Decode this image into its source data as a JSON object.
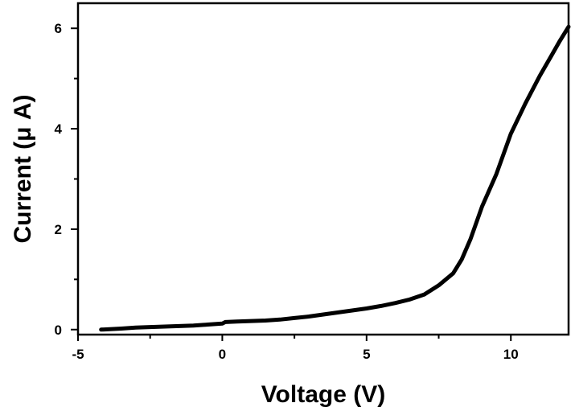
{
  "chart_data": {
    "type": "line",
    "title": "",
    "xlabel": "Voltage (V)",
    "ylabel": "Current (μ A)",
    "xlim": [
      -5,
      12
    ],
    "ylim": [
      -0.1,
      6.5
    ],
    "xticks": [
      -5,
      0,
      5,
      10
    ],
    "yticks": [
      0,
      2,
      4,
      6
    ],
    "grid": false,
    "legend": "none",
    "series": [
      {
        "color": "#000000",
        "x": [
          -4.2,
          -3.5,
          -3.0,
          -2.5,
          -2.0,
          -1.5,
          -1.0,
          -0.5,
          0.0,
          0.1,
          0.5,
          1.0,
          1.5,
          2.0,
          2.5,
          3.0,
          3.5,
          4.0,
          4.5,
          5.0,
          5.5,
          6.0,
          6.5,
          7.0,
          7.5,
          8.0,
          8.3,
          8.6,
          9.0,
          9.5,
          10.0,
          10.5,
          11.0,
          11.3,
          11.4,
          11.7,
          12.0
        ],
        "y": [
          0.0,
          0.02,
          0.04,
          0.05,
          0.06,
          0.07,
          0.08,
          0.1,
          0.12,
          0.15,
          0.16,
          0.17,
          0.18,
          0.2,
          0.23,
          0.26,
          0.3,
          0.34,
          0.38,
          0.42,
          0.47,
          0.53,
          0.6,
          0.7,
          0.88,
          1.12,
          1.4,
          1.8,
          2.45,
          3.1,
          3.9,
          4.5,
          5.05,
          5.35,
          5.45,
          5.75,
          6.03
        ]
      }
    ]
  }
}
